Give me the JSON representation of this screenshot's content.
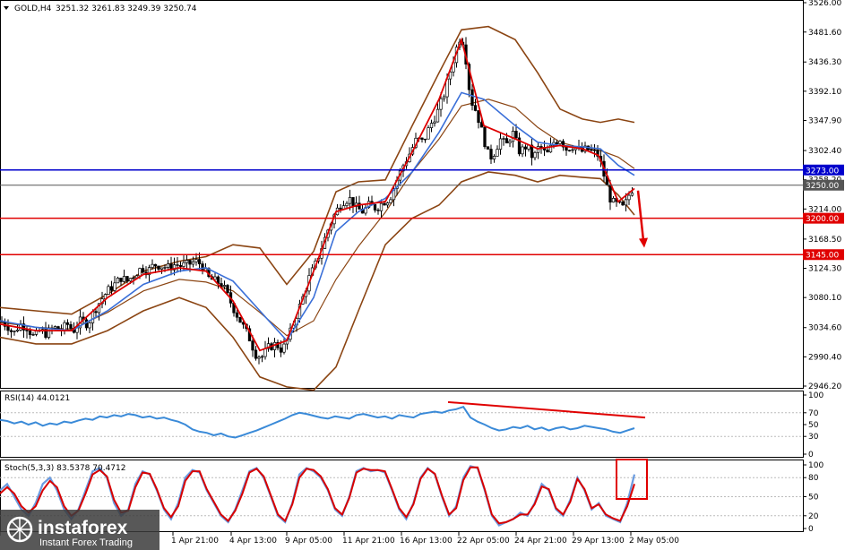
{
  "header": {
    "symbol": "GOLD,H4",
    "ohlc": "3251.32 3261.83 3249.39 3250.74"
  },
  "colors": {
    "candles": "#000000",
    "bollinger": "#8b4513",
    "ma_fast": "#dd0000",
    "ma_slow": "#3a6fd8",
    "support_line": "#e00000",
    "resistance_line": "#0000cc",
    "current_price": "#555555",
    "rsi_line": "#3a8ad8",
    "stoch_main": "#6a9be0",
    "stoch_signal": "#d80000",
    "annotation": "#e00000"
  },
  "chart_data": [
    {
      "type": "candlestick",
      "panel": "price",
      "symbol": "GOLD",
      "timeframe": "H4",
      "yticks": [
        "3526.00",
        "3481.60",
        "3436.30",
        "3392.10",
        "3347.90",
        "3302.40",
        "3258.20",
        "3214.00",
        "3168.50",
        "3124.30",
        "3080.10",
        "3034.60",
        "2990.40",
        "2946.20"
      ],
      "ylim": [
        2946.2,
        3526.0
      ],
      "xtick_labels": [
        "",
        "1 Apr 21:00",
        "4 Apr 13:00",
        "9 Apr 05:00",
        "11 Apr 21:00",
        "16 Apr 13:00",
        "22 Apr 05:00",
        "24 Apr 21:00",
        "29 Apr 13:00",
        "2 May 05:00"
      ],
      "levels": [
        {
          "label": "3273.00",
          "value": 3273.0,
          "color": "#0000cc"
        },
        {
          "label": "3250.00",
          "value": 3250.0,
          "color": "#555555"
        },
        {
          "label": "3200.00",
          "value": 3200.0,
          "color": "#e00000"
        },
        {
          "label": "3145.00",
          "value": 3145.0,
          "color": "#e00000"
        }
      ],
      "close_path": [
        [
          0,
          3045
        ],
        [
          8,
          3038
        ],
        [
          15,
          3025
        ],
        [
          22,
          3040
        ],
        [
          30,
          3035
        ],
        [
          38,
          3020
        ],
        [
          45,
          3030
        ],
        [
          52,
          3025
        ],
        [
          60,
          3035
        ],
        [
          68,
          3030
        ],
        [
          75,
          3040
        ],
        [
          82,
          3030
        ],
        [
          90,
          3045
        ],
        [
          98,
          3040
        ],
        [
          105,
          3060
        ],
        [
          112,
          3075
        ],
        [
          120,
          3090
        ],
        [
          128,
          3100
        ],
        [
          135,
          3110
        ],
        [
          142,
          3105
        ],
        [
          150,
          3115
        ],
        [
          158,
          3125
        ],
        [
          165,
          3120
        ],
        [
          172,
          3130
        ],
        [
          180,
          3128
        ],
        [
          188,
          3125
        ],
        [
          195,
          3130
        ],
        [
          202,
          3128
        ],
        [
          210,
          3130
        ],
        [
          218,
          3135
        ],
        [
          225,
          3130
        ],
        [
          232,
          3110
        ],
        [
          240,
          3105
        ],
        [
          248,
          3100
        ],
        [
          255,
          3080
        ],
        [
          262,
          3060
        ],
        [
          270,
          3040
        ],
        [
          278,
          3020
        ],
        [
          285,
          2995
        ],
        [
          292,
          2990
        ],
        [
          300,
          3005
        ],
        [
          308,
          3010
        ],
        [
          315,
          3000
        ],
        [
          322,
          3020
        ],
        [
          330,
          3050
        ],
        [
          338,
          3080
        ],
        [
          345,
          3110
        ],
        [
          352,
          3130
        ],
        [
          360,
          3160
        ],
        [
          368,
          3190
        ],
        [
          375,
          3210
        ],
        [
          382,
          3225
        ],
        [
          390,
          3230
        ],
        [
          398,
          3215
        ],
        [
          405,
          3210
        ],
        [
          412,
          3220
        ],
        [
          420,
          3215
        ],
        [
          428,
          3225
        ],
        [
          435,
          3230
        ],
        [
          442,
          3255
        ],
        [
          450,
          3280
        ],
        [
          458,
          3300
        ],
        [
          465,
          3320
        ],
        [
          472,
          3315
        ],
        [
          480,
          3340
        ],
        [
          488,
          3360
        ],
        [
          495,
          3385
        ],
        [
          502,
          3420
        ],
        [
          510,
          3460
        ],
        [
          515,
          3480
        ],
        [
          520,
          3440
        ],
        [
          525,
          3380
        ],
        [
          532,
          3360
        ],
        [
          540,
          3320
        ],
        [
          546,
          3290
        ],
        [
          552,
          3300
        ],
        [
          558,
          3320
        ],
        [
          565,
          3310
        ],
        [
          572,
          3330
        ],
        [
          580,
          3300
        ],
        [
          588,
          3310
        ],
        [
          595,
          3290
        ],
        [
          602,
          3310
        ],
        [
          610,
          3295
        ],
        [
          618,
          3315
        ],
        [
          625,
          3320
        ],
        [
          632,
          3305
        ],
        [
          640,
          3310
        ],
        [
          648,
          3300
        ],
        [
          655,
          3305
        ],
        [
          662,
          3300
        ],
        [
          668,
          3295
        ],
        [
          675,
          3260
        ],
        [
          682,
          3225
        ],
        [
          690,
          3220
        ],
        [
          696,
          3215
        ],
        [
          702,
          3235
        ],
        [
          708,
          3250
        ]
      ],
      "bb_upper_path": [
        [
          0,
          3065
        ],
        [
          40,
          3060
        ],
        [
          80,
          3055
        ],
        [
          120,
          3085
        ],
        [
          160,
          3120
        ],
        [
          200,
          3135
        ],
        [
          230,
          3142
        ],
        [
          260,
          3160
        ],
        [
          290,
          3155
        ],
        [
          320,
          3100
        ],
        [
          350,
          3150
        ],
        [
          375,
          3240
        ],
        [
          400,
          3255
        ],
        [
          430,
          3258
        ],
        [
          460,
          3340
        ],
        [
          490,
          3420
        ],
        [
          515,
          3485
        ],
        [
          545,
          3490
        ],
        [
          575,
          3470
        ],
        [
          600,
          3420
        ],
        [
          625,
          3365
        ],
        [
          650,
          3350
        ],
        [
          670,
          3345
        ],
        [
          690,
          3350
        ],
        [
          708,
          3345
        ]
      ],
      "bb_lower_path": [
        [
          0,
          3020
        ],
        [
          40,
          3010
        ],
        [
          80,
          3010
        ],
        [
          120,
          3030
        ],
        [
          160,
          3060
        ],
        [
          200,
          3080
        ],
        [
          230,
          3065
        ],
        [
          260,
          3020
        ],
        [
          290,
          2960
        ],
        [
          320,
          2945
        ],
        [
          350,
          2940
        ],
        [
          375,
          2975
        ],
        [
          400,
          3060
        ],
        [
          430,
          3160
        ],
        [
          460,
          3200
        ],
        [
          490,
          3220
        ],
        [
          515,
          3255
        ],
        [
          545,
          3270
        ],
        [
          575,
          3265
        ],
        [
          600,
          3255
        ],
        [
          625,
          3265
        ],
        [
          650,
          3262
        ],
        [
          670,
          3260
        ],
        [
          690,
          3235
        ],
        [
          708,
          3205
        ]
      ],
      "ma_fast_path": [
        [
          0,
          3040
        ],
        [
          40,
          3030
        ],
        [
          80,
          3030
        ],
        [
          120,
          3080
        ],
        [
          160,
          3115
        ],
        [
          200,
          3125
        ],
        [
          230,
          3120
        ],
        [
          260,
          3075
        ],
        [
          290,
          3000
        ],
        [
          320,
          3015
        ],
        [
          350,
          3120
        ],
        [
          375,
          3210
        ],
        [
          400,
          3220
        ],
        [
          430,
          3225
        ],
        [
          460,
          3300
        ],
        [
          490,
          3380
        ],
        [
          515,
          3470
        ],
        [
          540,
          3340
        ],
        [
          575,
          3320
        ],
        [
          600,
          3305
        ],
        [
          625,
          3310
        ],
        [
          650,
          3305
        ],
        [
          668,
          3295
        ],
        [
          690,
          3225
        ],
        [
          708,
          3245
        ]
      ],
      "ma_slow_path": [
        [
          0,
          3045
        ],
        [
          40,
          3035
        ],
        [
          80,
          3030
        ],
        [
          120,
          3060
        ],
        [
          160,
          3100
        ],
        [
          200,
          3120
        ],
        [
          230,
          3125
        ],
        [
          260,
          3105
        ],
        [
          290,
          3060
        ],
        [
          320,
          3015
        ],
        [
          350,
          3080
        ],
        [
          375,
          3180
        ],
        [
          400,
          3210
        ],
        [
          430,
          3230
        ],
        [
          460,
          3270
        ],
        [
          490,
          3330
        ],
        [
          515,
          3390
        ],
        [
          540,
          3380
        ],
        [
          575,
          3340
        ],
        [
          600,
          3315
        ],
        [
          625,
          3310
        ],
        [
          650,
          3308
        ],
        [
          670,
          3305
        ],
        [
          690,
          3280
        ],
        [
          708,
          3265
        ]
      ],
      "annotation_arrow": {
        "from": [
          3250,
          3250
        ],
        "to": [
          3150,
          3150
        ]
      }
    },
    {
      "type": "line",
      "panel": "rsi",
      "title": "RSI(14) 44.0121",
      "yticks": [
        "100",
        "70",
        "50",
        "30",
        "0"
      ],
      "ylim": [
        0,
        100
      ],
      "values": [
        58,
        56,
        52,
        55,
        50,
        54,
        48,
        52,
        50,
        55,
        53,
        57,
        60,
        58,
        64,
        62,
        66,
        64,
        68,
        66,
        62,
        64,
        60,
        62,
        58,
        55,
        50,
        42,
        38,
        36,
        32,
        35,
        30,
        28,
        32,
        36,
        40,
        45,
        50,
        55,
        60,
        66,
        70,
        68,
        65,
        62,
        60,
        64,
        62,
        60,
        66,
        68,
        65,
        62,
        64,
        60,
        66,
        64,
        62,
        68,
        70,
        72,
        70,
        74,
        76,
        80,
        62,
        55,
        50,
        44,
        40,
        42,
        46,
        44,
        48,
        42,
        45,
        40,
        44,
        46,
        42,
        44,
        48,
        46,
        44,
        42,
        38,
        36,
        40,
        44
      ],
      "divergence_line": {
        "from_value": 88,
        "to_value": 62
      }
    },
    {
      "type": "line",
      "panel": "stochastic",
      "title": "Stoch(5,3,3) 83.5378 70.4712",
      "yticks": [
        "100",
        "80",
        "50",
        "20",
        "0"
      ],
      "ylim": [
        0,
        100
      ],
      "main_values": [
        60,
        70,
        50,
        30,
        20,
        40,
        70,
        80,
        60,
        30,
        15,
        30,
        60,
        90,
        95,
        80,
        40,
        20,
        30,
        70,
        90,
        85,
        60,
        30,
        15,
        40,
        80,
        92,
        88,
        60,
        40,
        20,
        10,
        30,
        60,
        90,
        95,
        80,
        50,
        20,
        10,
        40,
        85,
        95,
        90,
        80,
        60,
        30,
        20,
        50,
        90,
        95,
        90,
        92,
        88,
        60,
        30,
        15,
        40,
        80,
        95,
        85,
        50,
        20,
        35,
        80,
        98,
        95,
        60,
        20,
        5,
        10,
        15,
        25,
        20,
        40,
        70,
        60,
        30,
        20,
        45,
        80,
        60,
        30,
        40,
        20,
        15,
        10,
        40,
        85
      ],
      "signal_values": [
        55,
        65,
        55,
        35,
        25,
        35,
        60,
        75,
        65,
        35,
        20,
        28,
        55,
        85,
        92,
        82,
        45,
        25,
        28,
        65,
        88,
        86,
        62,
        32,
        18,
        35,
        75,
        90,
        90,
        62,
        42,
        22,
        12,
        28,
        55,
        88,
        94,
        82,
        52,
        22,
        12,
        38,
        80,
        94,
        92,
        82,
        62,
        32,
        22,
        48,
        88,
        94,
        92,
        92,
        90,
        62,
        32,
        18,
        38,
        78,
        94,
        86,
        52,
        22,
        32,
        76,
        96,
        96,
        62,
        22,
        8,
        10,
        15,
        22,
        22,
        38,
        66,
        62,
        32,
        22,
        42,
        78,
        62,
        32,
        38,
        22,
        16,
        12,
        35,
        70
      ]
    }
  ],
  "watermark": {
    "brand": "instaforex",
    "tagline": "Instant Forex Trading"
  }
}
